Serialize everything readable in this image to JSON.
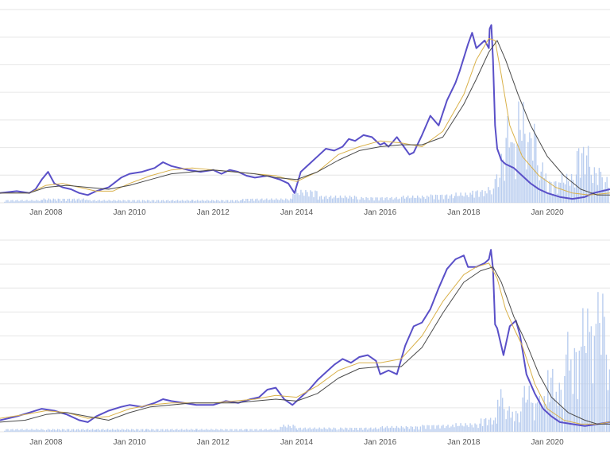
{
  "colors": {
    "price": "#5a50c8",
    "ma_short": "#d9b14a",
    "ma_long": "#4a4a4a",
    "volume": "#b9cdef",
    "grid": "#e6e6e6",
    "axis_text": "#555555"
  },
  "chart_data": [
    {
      "type": "line",
      "title": "",
      "xlabel": "",
      "ylabel": "",
      "grid": true,
      "x_tick_labels": [
        "Jan 2008",
        "Jan 2010",
        "Jan 2012",
        "Jan 2014",
        "Jan 2016",
        "Jan 2018",
        "Jan 2020"
      ],
      "x_ticks": [
        2008,
        2010,
        2012,
        2014,
        2016,
        2018,
        2020
      ],
      "xlim": [
        2006.9,
        2021.5
      ],
      "ylim": [
        0,
        100
      ],
      "series": [
        {
          "role": "price",
          "x": [
            2006.9,
            2007.3,
            2007.6,
            2007.75,
            2007.9,
            2008.05,
            2008.2,
            2008.4,
            2008.6,
            2008.8,
            2009.0,
            2009.2,
            2009.5,
            2009.8,
            2010.0,
            2010.3,
            2010.6,
            2010.8,
            2011.0,
            2011.2,
            2011.4,
            2011.7,
            2012.0,
            2012.2,
            2012.4,
            2012.6,
            2012.8,
            2013.0,
            2013.3,
            2013.6,
            2013.8,
            2013.95,
            2014.1,
            2014.3,
            2014.5,
            2014.7,
            2014.9,
            2015.1,
            2015.25,
            2015.4,
            2015.6,
            2015.8,
            2016.0,
            2016.1,
            2016.2,
            2016.4,
            2016.6,
            2016.7,
            2016.8,
            2017.0,
            2017.2,
            2017.4,
            2017.6,
            2017.8,
            2017.9,
            2018.0,
            2018.1,
            2018.2,
            2018.3,
            2018.5,
            2018.6,
            2018.62,
            2018.66,
            2018.7,
            2018.75,
            2018.8,
            2018.9,
            2019.0,
            2019.2,
            2019.4,
            2019.6,
            2019.8,
            2020.0,
            2020.3,
            2020.6,
            2020.9,
            2021.1,
            2021.3,
            2021.5
          ],
          "y": [
            5,
            6,
            5,
            7,
            12,
            16,
            10,
            8,
            7,
            5,
            4,
            6,
            8,
            13,
            15,
            16,
            18,
            21,
            19,
            18,
            17,
            16,
            17,
            15,
            17,
            16,
            14,
            13,
            14,
            12,
            10,
            5,
            16,
            20,
            24,
            28,
            27,
            29,
            33,
            32,
            35,
            34,
            30,
            31,
            29,
            34,
            28,
            25,
            26,
            35,
            45,
            40,
            53,
            62,
            68,
            75,
            82,
            88,
            80,
            84,
            80,
            90,
            92,
            74,
            40,
            28,
            22,
            20,
            18,
            14,
            10,
            7,
            5,
            3,
            2,
            3,
            5,
            6,
            7
          ],
          "color_key": "price"
        },
        {
          "role": "ma_short",
          "x": [
            2006.9,
            2007.6,
            2008.0,
            2008.4,
            2008.8,
            2009.2,
            2009.6,
            2010.0,
            2010.5,
            2011.0,
            2011.5,
            2012.0,
            2012.5,
            2013.0,
            2013.5,
            2014.0,
            2014.5,
            2015.0,
            2015.5,
            2016.0,
            2016.5,
            2017.0,
            2017.5,
            2018.0,
            2018.3,
            2018.6,
            2018.75,
            2018.9,
            2019.1,
            2019.4,
            2019.8,
            2020.2,
            2020.6,
            2021.0,
            2021.5
          ],
          "y": [
            5,
            5,
            9,
            10,
            8,
            6,
            6,
            10,
            14,
            17,
            18,
            17,
            16,
            15,
            14,
            11,
            16,
            25,
            29,
            32,
            31,
            29,
            37,
            56,
            74,
            85,
            84,
            66,
            40,
            24,
            14,
            8,
            5,
            4,
            5
          ],
          "color_key": "ma_short"
        },
        {
          "role": "ma_long",
          "x": [
            2006.9,
            2007.6,
            2008.0,
            2008.5,
            2009.0,
            2009.5,
            2010.0,
            2010.5,
            2011.0,
            2011.5,
            2012.0,
            2012.5,
            2013.0,
            2013.5,
            2014.0,
            2014.5,
            2015.0,
            2015.5,
            2016.0,
            2016.5,
            2017.0,
            2017.5,
            2018.0,
            2018.3,
            2018.6,
            2018.8,
            2019.0,
            2019.3,
            2019.6,
            2020.0,
            2020.4,
            2020.8,
            2021.2,
            2021.5
          ],
          "y": [
            5,
            5,
            8,
            9,
            8,
            7,
            9,
            12,
            15,
            16,
            17,
            16,
            15,
            13,
            12,
            16,
            22,
            27,
            29,
            30,
            30,
            34,
            51,
            64,
            78,
            84,
            74,
            56,
            40,
            24,
            14,
            7,
            4,
            4
          ],
          "color_key": "ma_long"
        }
      ],
      "volume": {
        "x": [
          2007.0,
          2007.9,
          2009.0,
          2010.3,
          2011.5,
          2012.7,
          2013.9,
          2014.5,
          2015.5,
          2016.5,
          2017.2,
          2017.8,
          2018.2,
          2018.5,
          2018.7,
          2018.85,
          2019.0,
          2019.15,
          2019.3,
          2019.45,
          2019.6,
          2019.8,
          2020.0,
          2020.3,
          2020.7,
          2021.0,
          2021.3
        ],
        "y": [
          2,
          3,
          2,
          2,
          2,
          3,
          9,
          5,
          4,
          5,
          6,
          7,
          9,
          11,
          20,
          35,
          60,
          45,
          70,
          50,
          56,
          28,
          16,
          20,
          40,
          25,
          18
        ],
        "color_key": "volume"
      }
    },
    {
      "type": "line",
      "title": "",
      "xlabel": "",
      "ylabel": "",
      "grid": true,
      "x_tick_labels": [
        "Jan 2008",
        "Jan 2010",
        "Jan 2012",
        "Jan 2014",
        "Jan 2016",
        "Jan 2018",
        "Jan 2020"
      ],
      "x_ticks": [
        2008,
        2010,
        2012,
        2014,
        2016,
        2018,
        2020
      ],
      "xlim": [
        2006.9,
        2021.5
      ],
      "ylim": [
        0,
        100
      ],
      "series": [
        {
          "role": "price",
          "x": [
            2006.9,
            2007.3,
            2007.6,
            2007.9,
            2008.2,
            2008.5,
            2008.8,
            2009.0,
            2009.2,
            2009.5,
            2009.8,
            2010.0,
            2010.3,
            2010.6,
            2010.8,
            2011.0,
            2011.3,
            2011.6,
            2012.0,
            2012.3,
            2012.6,
            2012.9,
            2013.1,
            2013.3,
            2013.5,
            2013.7,
            2013.9,
            2014.1,
            2014.3,
            2014.5,
            2014.7,
            2014.9,
            2015.1,
            2015.3,
            2015.5,
            2015.7,
            2015.9,
            2016.0,
            2016.2,
            2016.4,
            2016.6,
            2016.8,
            2017.0,
            2017.2,
            2017.4,
            2017.6,
            2017.8,
            2018.0,
            2018.1,
            2018.3,
            2018.5,
            2018.6,
            2018.65,
            2018.7,
            2018.75,
            2018.8,
            2018.95,
            2019.1,
            2019.25,
            2019.35,
            2019.5,
            2019.7,
            2019.9,
            2020.1,
            2020.3,
            2020.6,
            2020.9,
            2021.2,
            2021.5
          ],
          "y": [
            6,
            8,
            10,
            12,
            11,
            9,
            6,
            5,
            8,
            11,
            13,
            14,
            13,
            15,
            17,
            16,
            15,
            14,
            14,
            16,
            15,
            17,
            18,
            22,
            23,
            17,
            14,
            18,
            22,
            27,
            31,
            35,
            38,
            36,
            39,
            40,
            37,
            30,
            32,
            30,
            45,
            55,
            57,
            64,
            75,
            85,
            90,
            92,
            86,
            86,
            88,
            90,
            95,
            85,
            56,
            54,
            40,
            55,
            58,
            50,
            30,
            20,
            12,
            8,
            5,
            4,
            3,
            4,
            5
          ],
          "color_key": "price"
        },
        {
          "role": "ma_short",
          "x": [
            2006.9,
            2007.5,
            2008.0,
            2008.5,
            2009.0,
            2009.5,
            2010.0,
            2010.5,
            2011.0,
            2011.5,
            2012.0,
            2012.5,
            2013.0,
            2013.5,
            2014.0,
            2014.5,
            2015.0,
            2015.5,
            2016.0,
            2016.5,
            2017.0,
            2017.5,
            2018.0,
            2018.3,
            2018.6,
            2018.8,
            2019.0,
            2019.2,
            2019.4,
            2019.7,
            2020.0,
            2020.4,
            2020.8,
            2021.2,
            2021.5
          ],
          "y": [
            7,
            9,
            11,
            10,
            7,
            8,
            12,
            14,
            15,
            15,
            15,
            16,
            17,
            19,
            18,
            24,
            32,
            36,
            36,
            38,
            50,
            68,
            82,
            86,
            88,
            80,
            64,
            54,
            45,
            25,
            12,
            6,
            4,
            4,
            5
          ],
          "color_key": "ma_short"
        },
        {
          "role": "ma_long",
          "x": [
            2006.9,
            2007.5,
            2008.0,
            2008.5,
            2009.0,
            2009.5,
            2010.0,
            2010.5,
            2011.0,
            2011.5,
            2012.0,
            2012.5,
            2013.0,
            2013.5,
            2014.0,
            2014.5,
            2015.0,
            2015.5,
            2016.0,
            2016.5,
            2017.0,
            2017.5,
            2018.0,
            2018.4,
            2018.7,
            2018.9,
            2019.2,
            2019.5,
            2019.8,
            2020.1,
            2020.5,
            2020.9,
            2021.2,
            2021.5
          ],
          "y": [
            5,
            6,
            9,
            10,
            8,
            6,
            10,
            13,
            14,
            15,
            15,
            15,
            16,
            17,
            16,
            20,
            28,
            33,
            34,
            34,
            44,
            62,
            78,
            84,
            86,
            78,
            60,
            46,
            30,
            18,
            10,
            6,
            4,
            4
          ],
          "color_key": "ma_long"
        }
      ],
      "volume": {
        "x": [
          2007.0,
          2008.0,
          2009.2,
          2010.4,
          2011.6,
          2012.8,
          2013.6,
          2014.0,
          2015.0,
          2016.0,
          2017.0,
          2017.8,
          2018.4,
          2018.8,
          2019.0,
          2019.2,
          2019.4,
          2019.6,
          2019.8,
          2020.0,
          2020.2,
          2020.4,
          2020.6,
          2020.8,
          2021.0,
          2021.2,
          2021.4
        ],
        "y": [
          2,
          2,
          2,
          2,
          2,
          2,
          5,
          3,
          3,
          4,
          5,
          6,
          10,
          30,
          18,
          15,
          32,
          22,
          25,
          45,
          35,
          70,
          62,
          86,
          78,
          98,
          55
        ],
        "color_key": "volume"
      }
    }
  ]
}
